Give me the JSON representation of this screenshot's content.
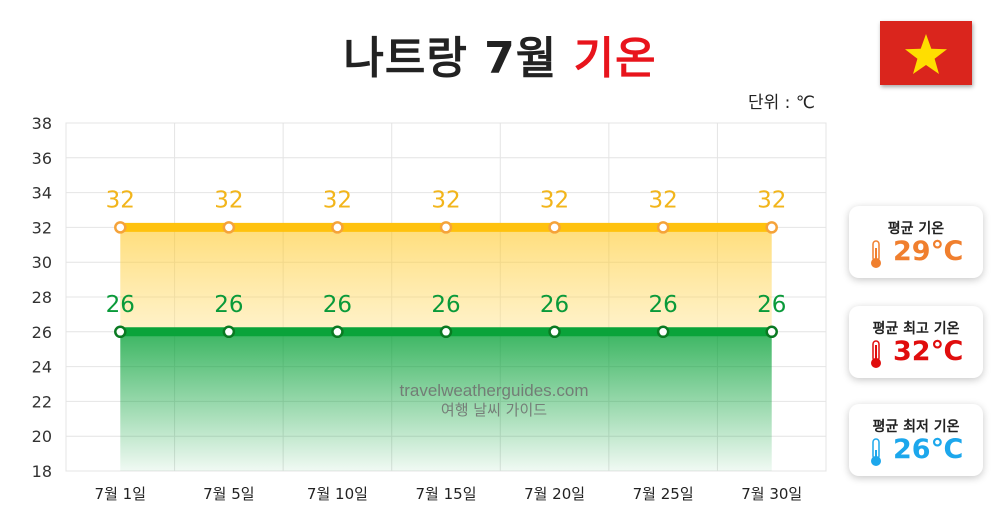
{
  "header": {
    "title_main": "나트랑 7월",
    "title_highlight": "기온",
    "unit": "단위 : ℃",
    "flag_icon": "vietnam-flag-icon"
  },
  "watermark": {
    "line1": "travelweatherguides.com",
    "line2": "여행 날씨 가이드"
  },
  "chart_data": {
    "type": "area",
    "categories": [
      "7월 1일",
      "7월 5일",
      "7월 10일",
      "7월 15일",
      "7월 20일",
      "7월 25일",
      "7월 30일"
    ],
    "series": [
      {
        "values": [
          32,
          32,
          32,
          32,
          32,
          32,
          32
        ],
        "color": "#ffc20e"
      },
      {
        "values": [
          26,
          26,
          26,
          26,
          26,
          26,
          26
        ],
        "color": "#0aa33a"
      }
    ],
    "ylim": [
      18,
      38
    ],
    "yticks": [
      18,
      20,
      22,
      24,
      26,
      28,
      30,
      32,
      34,
      36,
      38
    ],
    "grid": true
  },
  "cards": [
    {
      "label": "평균 기온",
      "value": "29℃",
      "color": "#f07f2e",
      "icon": "thermometer-orange-icon"
    },
    {
      "label": "평균 최고 기온",
      "value": "32℃",
      "color": "#e00d0d",
      "icon": "thermometer-red-icon"
    },
    {
      "label": "평균 최저 기온",
      "value": "26℃",
      "color": "#1ca7ec",
      "icon": "thermometer-blue-icon"
    }
  ]
}
